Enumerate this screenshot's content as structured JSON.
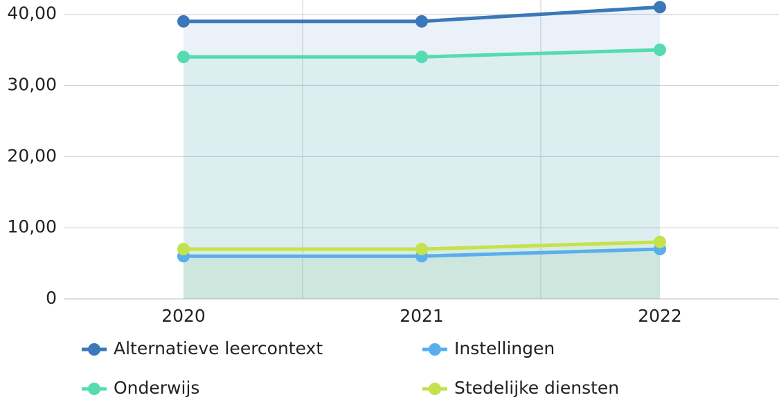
{
  "chart_data": {
    "type": "area",
    "categories": [
      "2020",
      "2021",
      "2022"
    ],
    "series": [
      {
        "name": "Alternatieve leercontext",
        "color": "#3b78b9",
        "values": [
          39,
          39,
          41
        ]
      },
      {
        "name": "Instellingen",
        "color": "#5aaeee",
        "values": [
          6,
          6,
          7
        ]
      },
      {
        "name": "Onderwijs",
        "color": "#55dbaf",
        "values": [
          34,
          34,
          35
        ]
      },
      {
        "name": "Stedelijke diensten",
        "color": "#c4e24b",
        "values": [
          7,
          7,
          8
        ]
      }
    ],
    "ylim": [
      0,
      42
    ],
    "yticks": [
      0,
      {
        "value": 10,
        "label": "10,00"
      },
      {
        "value": 20,
        "label": "20,00"
      },
      {
        "value": 30,
        "label": "30,00"
      },
      {
        "value": 40,
        "label": "40,00"
      }
    ],
    "grid": true
  }
}
